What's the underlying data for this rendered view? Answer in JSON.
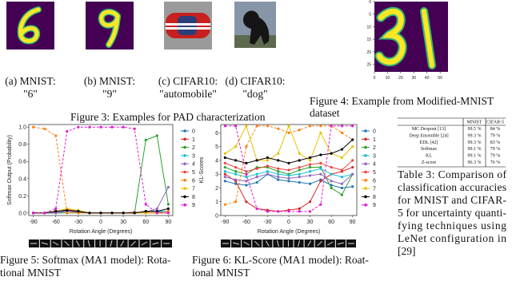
{
  "figure3": {
    "panels": [
      {
        "label": "(a) MNIST:",
        "sublabel": "\"6\""
      },
      {
        "label": "(b) MNIST:",
        "sublabel": "\"9\""
      },
      {
        "label": "(c) CIFAR10:",
        "sublabel": "\"automobile\""
      },
      {
        "label": "(d) CIFAR10:",
        "sublabel": "\"dog\""
      }
    ],
    "caption": "Figure 3: Examples for PAD characterization"
  },
  "figure4": {
    "xlim": [
      0,
      56
    ],
    "ylim": [
      0,
      28
    ],
    "xticks": [
      0,
      10,
      20,
      30,
      40,
      50
    ],
    "yticks": [
      0,
      5,
      10,
      15,
      20,
      25
    ],
    "caption_lines": [
      "Figure 4: Example from Modified-MNIST",
      "dataset"
    ]
  },
  "chart_data": [
    {
      "type": "line",
      "ylabel": "Softmax Output (Probability)",
      "xlabel": "Rotation Angle (Degrees)",
      "x": [
        -90,
        -75,
        -60,
        -45,
        -30,
        -15,
        0,
        15,
        30,
        45,
        60,
        75,
        90
      ],
      "xlim": [
        -96,
        96
      ],
      "xticks": [
        -90,
        -60,
        -30,
        0,
        30,
        60,
        90
      ],
      "ylim": [
        -0.03,
        1.03
      ],
      "yticks": [
        {
          "value": 0,
          "label": "0.0"
        },
        {
          "value": 0.2,
          "label": "0.2"
        },
        {
          "value": 0.4,
          "label": "0.4"
        },
        {
          "value": 0.6,
          "label": "0.6"
        },
        {
          "value": 0.8,
          "label": "0.8"
        },
        {
          "value": 1,
          "label": "1.0"
        }
      ],
      "series": [
        {
          "name": "0",
          "color": "#1f77b4",
          "values": [
            0,
            0,
            0,
            0.02,
            0.01,
            0,
            0,
            0,
            0,
            0,
            0,
            0.01,
            0.02
          ]
        },
        {
          "name": "1",
          "color": "#d62728",
          "values": [
            0,
            0,
            0.01,
            0.02,
            0.01,
            0,
            0,
            0,
            0,
            0.01,
            0,
            0,
            0
          ]
        },
        {
          "name": "2",
          "color": "#2ca02c",
          "values": [
            0,
            0,
            0,
            0,
            0,
            0,
            0,
            0,
            0,
            0,
            0.85,
            0.9,
            0.1
          ]
        },
        {
          "name": "3",
          "color": "#17becf",
          "values": [
            0,
            0,
            0,
            0.03,
            0.02,
            0,
            0,
            0,
            0,
            0,
            0.02,
            0.02,
            0.02
          ]
        },
        {
          "name": "4",
          "color": "#9467bd",
          "values": [
            0,
            0,
            0,
            0.02,
            0.01,
            0,
            0,
            0,
            0,
            0,
            0.01,
            0.05,
            0.3
          ]
        },
        {
          "name": "5",
          "color": "#e8473c",
          "values": [
            0,
            0,
            0.02,
            0.04,
            0.02,
            0,
            0,
            0,
            0,
            0,
            0.01,
            0,
            0
          ]
        },
        {
          "name": "6",
          "color": "#ff7f0e",
          "dashed": true,
          "values": [
            1,
            0.98,
            0.9,
            0,
            0,
            0,
            0,
            0,
            0,
            0,
            0,
            0,
            0.02
          ]
        },
        {
          "name": "7",
          "color": "#e6c200",
          "values": [
            0,
            0,
            0.02,
            0.05,
            0.03,
            0,
            0,
            0,
            0,
            0,
            0,
            0,
            0
          ]
        },
        {
          "name": "8",
          "color": "#000000",
          "values": [
            0,
            0,
            0.02,
            0.03,
            0.02,
            0,
            0,
            0,
            0,
            0,
            0.02,
            0.02,
            0.05
          ]
        },
        {
          "name": "9",
          "color": "#e41ad6",
          "dashed": true,
          "values": [
            0,
            0,
            0.05,
            0.95,
            1,
            1,
            1,
            1,
            1,
            0.98,
            0.1,
            0,
            0
          ]
        }
      ]
    },
    {
      "type": "line",
      "ylabel": "KL-Scores",
      "xlabel": "Rotation Angle (Degrees)",
      "x": [
        -90,
        -75,
        -60,
        -45,
        -30,
        -15,
        0,
        15,
        30,
        45,
        60,
        75,
        90
      ],
      "xlim": [
        -96,
        96
      ],
      "xticks": [
        -90,
        -60,
        -30,
        0,
        30,
        60,
        90
      ],
      "ylim": [
        0,
        6.6
      ],
      "yticks": [
        0,
        1,
        2,
        3,
        4,
        5,
        6
      ],
      "series": [
        {
          "name": "0",
          "color": "#1f77b4",
          "values": [
            2.5,
            2.3,
            2.2,
            2.4,
            3,
            2.6,
            2.5,
            2.4,
            2.3,
            2.6,
            2.2,
            2,
            2.1
          ]
        },
        {
          "name": "1",
          "color": "#d62728",
          "values": [
            3,
            2.5,
            1,
            0.5,
            0.4,
            0.3,
            0.4,
            0.5,
            1,
            2.5,
            3,
            3.2,
            3.5
          ]
        },
        {
          "name": "2",
          "color": "#2ca02c",
          "values": [
            3.5,
            3.2,
            3,
            3.5,
            3.5,
            3.2,
            3,
            3.3,
            3.5,
            3.5,
            2,
            1.5,
            3
          ]
        },
        {
          "name": "3",
          "color": "#17becf",
          "values": [
            3.2,
            3,
            2.8,
            3,
            3.2,
            3,
            2.9,
            3,
            3.2,
            3.4,
            3,
            2.8,
            3
          ]
        },
        {
          "name": "4",
          "color": "#9467bd",
          "values": [
            2.8,
            2.6,
            2.5,
            2.8,
            3,
            2.8,
            2.7,
            2.8,
            2.9,
            3,
            2.5,
            2.3,
            3
          ]
        },
        {
          "name": "5",
          "color": "#e8473c",
          "values": [
            3.8,
            3.5,
            3.2,
            3.4,
            3.6,
            3.4,
            3.3,
            3.5,
            3.7,
            3.8,
            3.5,
            3.3,
            4
          ]
        },
        {
          "name": "6",
          "color": "#ff7f0e",
          "dashed": true,
          "values": [
            0.8,
            1,
            5,
            6.5,
            6.5,
            6.3,
            6,
            6.2,
            6.5,
            6.5,
            6.5,
            6,
            5.5
          ]
        },
        {
          "name": "7",
          "color": "#e6c200",
          "values": [
            4.5,
            5,
            6.5,
            4,
            4,
            4.5,
            6.5,
            4.5,
            4,
            6,
            4.5,
            4.2,
            5
          ]
        },
        {
          "name": "8",
          "color": "#000000",
          "values": [
            4.2,
            4,
            3.8,
            4,
            4.2,
            4,
            3.8,
            4,
            4.2,
            4.4,
            4.5,
            4.8,
            5.5
          ]
        },
        {
          "name": "9",
          "color": "#e41ad6",
          "dashed": true,
          "values": [
            6.5,
            6.5,
            3,
            0.5,
            0.3,
            0.3,
            0.3,
            0.3,
            0.3,
            0.8,
            6.5,
            6.5,
            6.5
          ]
        }
      ]
    }
  ],
  "figure5": {
    "caption_lines": [
      "Figure 5: Softmax (MA1 model): Rota-",
      "tional MNIST"
    ]
  },
  "figure6": {
    "caption_lines": [
      "Figure 6: KL-Score (MA1 model): Roat-",
      "ional MNIST"
    ]
  },
  "table3": {
    "header": [
      "",
      "MNIST",
      "CIFAR-5"
    ],
    "rows": [
      [
        "MC Dropout [13]",
        "99.5 %",
        "84 %"
      ],
      [
        "Deep Ensemble [24]",
        "99.3 %",
        "79 %"
      ],
      [
        "EDL [42]",
        "99.3 %",
        "83 %"
      ],
      [
        "Softmax",
        "99.1 %",
        "79 %"
      ],
      [
        "KL",
        "99.1 %",
        "79 %"
      ],
      [
        "Z-score",
        "96.3 %",
        "76 %"
      ]
    ],
    "caption_lines": [
      "Table 3: Comparison of",
      "classification accuracies",
      "for MNIST and CIFAR-",
      "5 for uncertainty quanti-",
      "fying techniques using",
      "LeNet configuration in",
      "[29]"
    ]
  }
}
